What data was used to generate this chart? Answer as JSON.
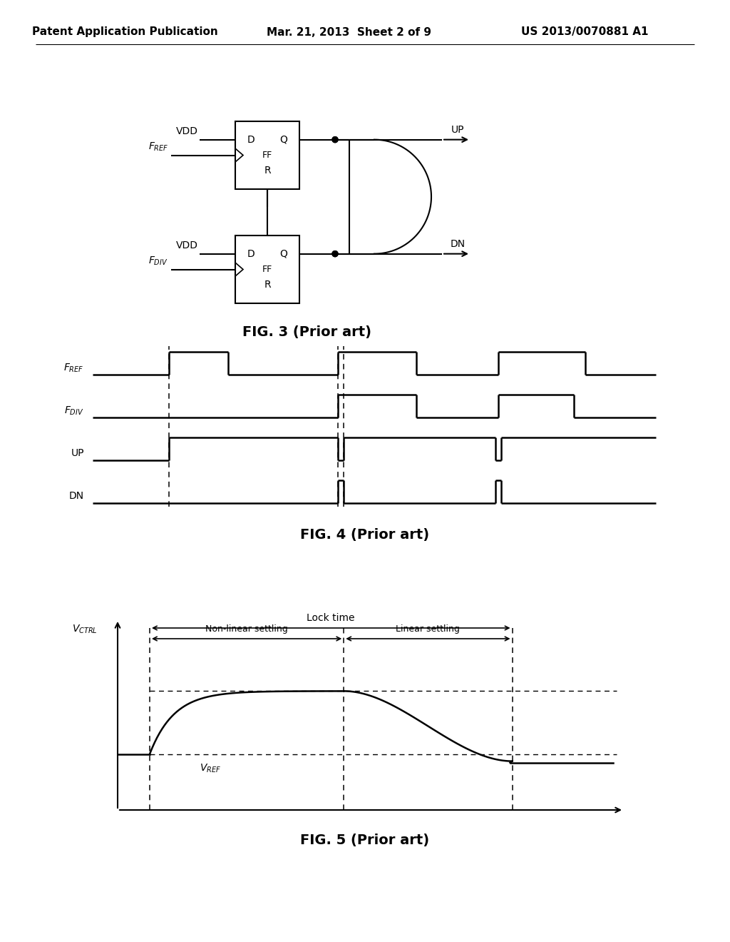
{
  "header_left": "Patent Application Publication",
  "header_mid": "Mar. 21, 2013  Sheet 2 of 9",
  "header_right": "US 2013/0070881 A1",
  "fig3_caption": "FIG. 3 (Prior art)",
  "fig4_caption": "FIG. 4 (Prior art)",
  "fig5_caption": "FIG. 5 (Prior art)",
  "bg_color": "#ffffff",
  "line_color": "#000000"
}
